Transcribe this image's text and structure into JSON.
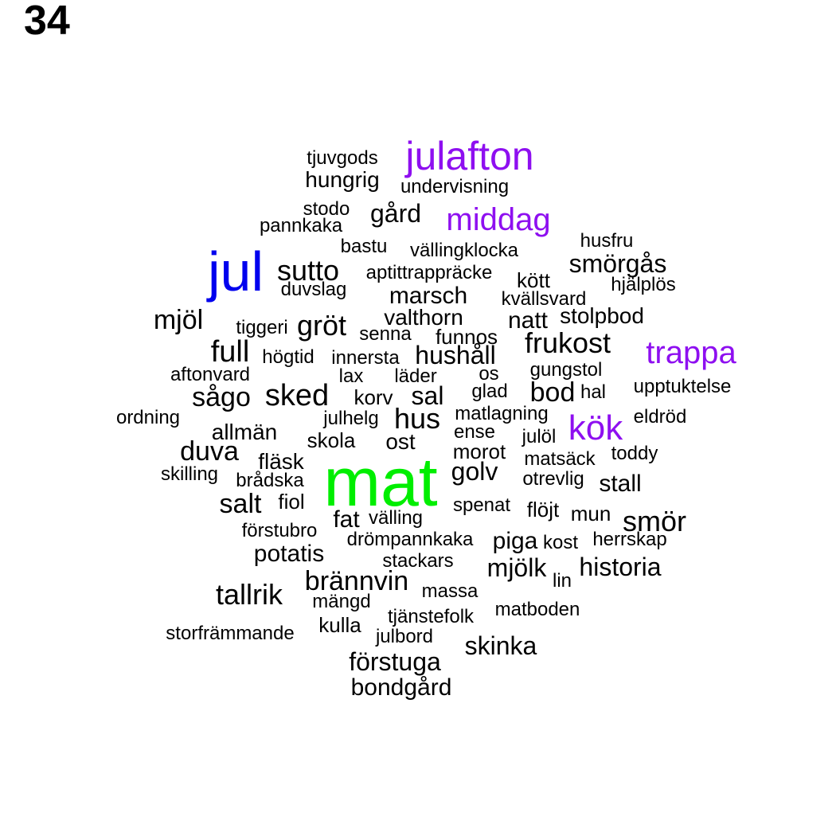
{
  "page_number": "34",
  "colors": {
    "default": "#000000",
    "blue": "#0000ee",
    "green": "#00ee00",
    "purple": "#8e0ff0"
  },
  "words": [
    {
      "text": "mat",
      "color": "green"
    },
    {
      "text": "jul",
      "color": "blue"
    },
    {
      "text": "julafton",
      "color": "purple"
    },
    {
      "text": "middag",
      "color": "purple"
    },
    {
      "text": "trappa",
      "color": "purple"
    },
    {
      "text": "kök",
      "color": "purple"
    },
    {
      "text": "tjuvgods",
      "color": "default"
    },
    {
      "text": "hungrig",
      "color": "default"
    },
    {
      "text": "undervisning",
      "color": "default"
    },
    {
      "text": "stodo",
      "color": "default"
    },
    {
      "text": "pannkaka",
      "color": "default"
    },
    {
      "text": "gård",
      "color": "default"
    },
    {
      "text": "husfru",
      "color": "default"
    },
    {
      "text": "bastu",
      "color": "default"
    },
    {
      "text": "vällingklocka",
      "color": "default"
    },
    {
      "text": "smörgås",
      "color": "default"
    },
    {
      "text": "sutto",
      "color": "default"
    },
    {
      "text": "aptittrappräcke",
      "color": "default"
    },
    {
      "text": "kött",
      "color": "default"
    },
    {
      "text": "hjälplös",
      "color": "default"
    },
    {
      "text": "duvslag",
      "color": "default"
    },
    {
      "text": "marsch",
      "color": "default"
    },
    {
      "text": "kvällsvard",
      "color": "default"
    },
    {
      "text": "mjöl",
      "color": "default"
    },
    {
      "text": "valthorn",
      "color": "default"
    },
    {
      "text": "stolpbod",
      "color": "default"
    },
    {
      "text": "tiggeri",
      "color": "default"
    },
    {
      "text": "gröt",
      "color": "default"
    },
    {
      "text": "natt",
      "color": "default"
    },
    {
      "text": "senna",
      "color": "default"
    },
    {
      "text": "funnos",
      "color": "default"
    },
    {
      "text": "frukost",
      "color": "default"
    },
    {
      "text": "full",
      "color": "default"
    },
    {
      "text": "högtid",
      "color": "default"
    },
    {
      "text": "innersta",
      "color": "default"
    },
    {
      "text": "hushåll",
      "color": "default"
    },
    {
      "text": "aftonvard",
      "color": "default"
    },
    {
      "text": "lax",
      "color": "default"
    },
    {
      "text": "läder",
      "color": "default"
    },
    {
      "text": "os",
      "color": "default"
    },
    {
      "text": "gungstol",
      "color": "default"
    },
    {
      "text": "upptuktelse",
      "color": "default"
    },
    {
      "text": "sågo",
      "color": "default"
    },
    {
      "text": "sked",
      "color": "default"
    },
    {
      "text": "korv",
      "color": "default"
    },
    {
      "text": "sal",
      "color": "default"
    },
    {
      "text": "glad",
      "color": "default"
    },
    {
      "text": "bod",
      "color": "default"
    },
    {
      "text": "hal",
      "color": "default"
    },
    {
      "text": "ordning",
      "color": "default"
    },
    {
      "text": "julhelg",
      "color": "default"
    },
    {
      "text": "hus",
      "color": "default"
    },
    {
      "text": "matlagning",
      "color": "default"
    },
    {
      "text": "eldröd",
      "color": "default"
    },
    {
      "text": "allmän",
      "color": "default"
    },
    {
      "text": "ense",
      "color": "default"
    },
    {
      "text": "skola",
      "color": "default"
    },
    {
      "text": "ost",
      "color": "default"
    },
    {
      "text": "julöl",
      "color": "default"
    },
    {
      "text": "duva",
      "color": "default"
    },
    {
      "text": "morot",
      "color": "default"
    },
    {
      "text": "matsäck",
      "color": "default"
    },
    {
      "text": "toddy",
      "color": "default"
    },
    {
      "text": "fläsk",
      "color": "default"
    },
    {
      "text": "skilling",
      "color": "default"
    },
    {
      "text": "brådska",
      "color": "default"
    },
    {
      "text": "golv",
      "color": "default"
    },
    {
      "text": "otrevlig",
      "color": "default"
    },
    {
      "text": "stall",
      "color": "default"
    },
    {
      "text": "salt",
      "color": "default"
    },
    {
      "text": "fiol",
      "color": "default"
    },
    {
      "text": "spenat",
      "color": "default"
    },
    {
      "text": "flöjt",
      "color": "default"
    },
    {
      "text": "mun",
      "color": "default"
    },
    {
      "text": "smör",
      "color": "default"
    },
    {
      "text": "fat",
      "color": "default"
    },
    {
      "text": "välling",
      "color": "default"
    },
    {
      "text": "förstubro",
      "color": "default"
    },
    {
      "text": "drömpannkaka",
      "color": "default"
    },
    {
      "text": "piga",
      "color": "default"
    },
    {
      "text": "kost",
      "color": "default"
    },
    {
      "text": "herrskap",
      "color": "default"
    },
    {
      "text": "potatis",
      "color": "default"
    },
    {
      "text": "stackars",
      "color": "default"
    },
    {
      "text": "mjölk",
      "color": "default"
    },
    {
      "text": "historia",
      "color": "default"
    },
    {
      "text": "brännvin",
      "color": "default"
    },
    {
      "text": "lin",
      "color": "default"
    },
    {
      "text": "tallrik",
      "color": "default"
    },
    {
      "text": "mängd",
      "color": "default"
    },
    {
      "text": "massa",
      "color": "default"
    },
    {
      "text": "tjänstefolk",
      "color": "default"
    },
    {
      "text": "matboden",
      "color": "default"
    },
    {
      "text": "kulla",
      "color": "default"
    },
    {
      "text": "storfrämmande",
      "color": "default"
    },
    {
      "text": "julbord",
      "color": "default"
    },
    {
      "text": "skinka",
      "color": "default"
    },
    {
      "text": "förstuga",
      "color": "default"
    },
    {
      "text": "bondgård",
      "color": "default"
    }
  ]
}
